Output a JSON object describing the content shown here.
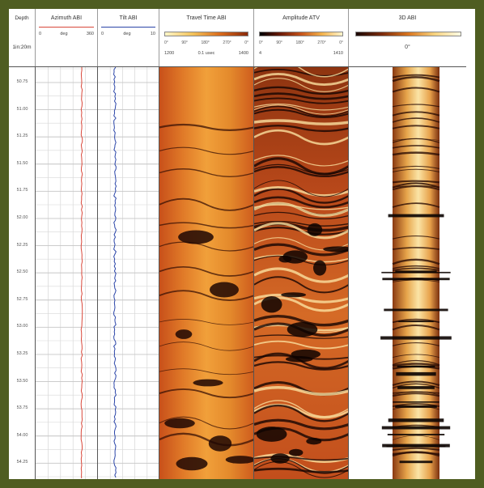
{
  "depth_header": {
    "label": "Depth",
    "scale": "1in:20m"
  },
  "tracks": {
    "azimuth": {
      "title": "Azimuth ABI",
      "min": "0",
      "unit": "deg",
      "max": "360",
      "color": "#d9483b"
    },
    "tilt": {
      "title": "Tilt ABI",
      "min": "0",
      "unit": "deg",
      "max": "10",
      "color": "#2b45a8"
    },
    "travel_time": {
      "title": "Travel Time ABI",
      "ticks": [
        "0°",
        "90°",
        "180°",
        "270°",
        "0°"
      ],
      "min": "1200",
      "unit": "0.1 usec",
      "max": "1400"
    },
    "amplitude": {
      "title": "Amplitude ATV",
      "ticks": [
        "0°",
        "90°",
        "180°",
        "270°",
        "0°"
      ],
      "min": "4",
      "max": "1410"
    },
    "abi3d": {
      "title": "3D ABI",
      "angle": "0°"
    }
  },
  "depth_labels": [
    "50.75",
    "51.00",
    "51.25",
    "51.50",
    "51.75",
    "52.00",
    "52.25",
    "52.50",
    "52.75",
    "53.00",
    "53.25",
    "53.50",
    "53.75",
    "54.00",
    "54.25"
  ],
  "colors": {
    "frame": "#4f5d21",
    "grid": "#c8c8c8",
    "image_dark": "#1a0804",
    "image_mid": "#c0521a",
    "image_light": "#f7e6b0"
  }
}
